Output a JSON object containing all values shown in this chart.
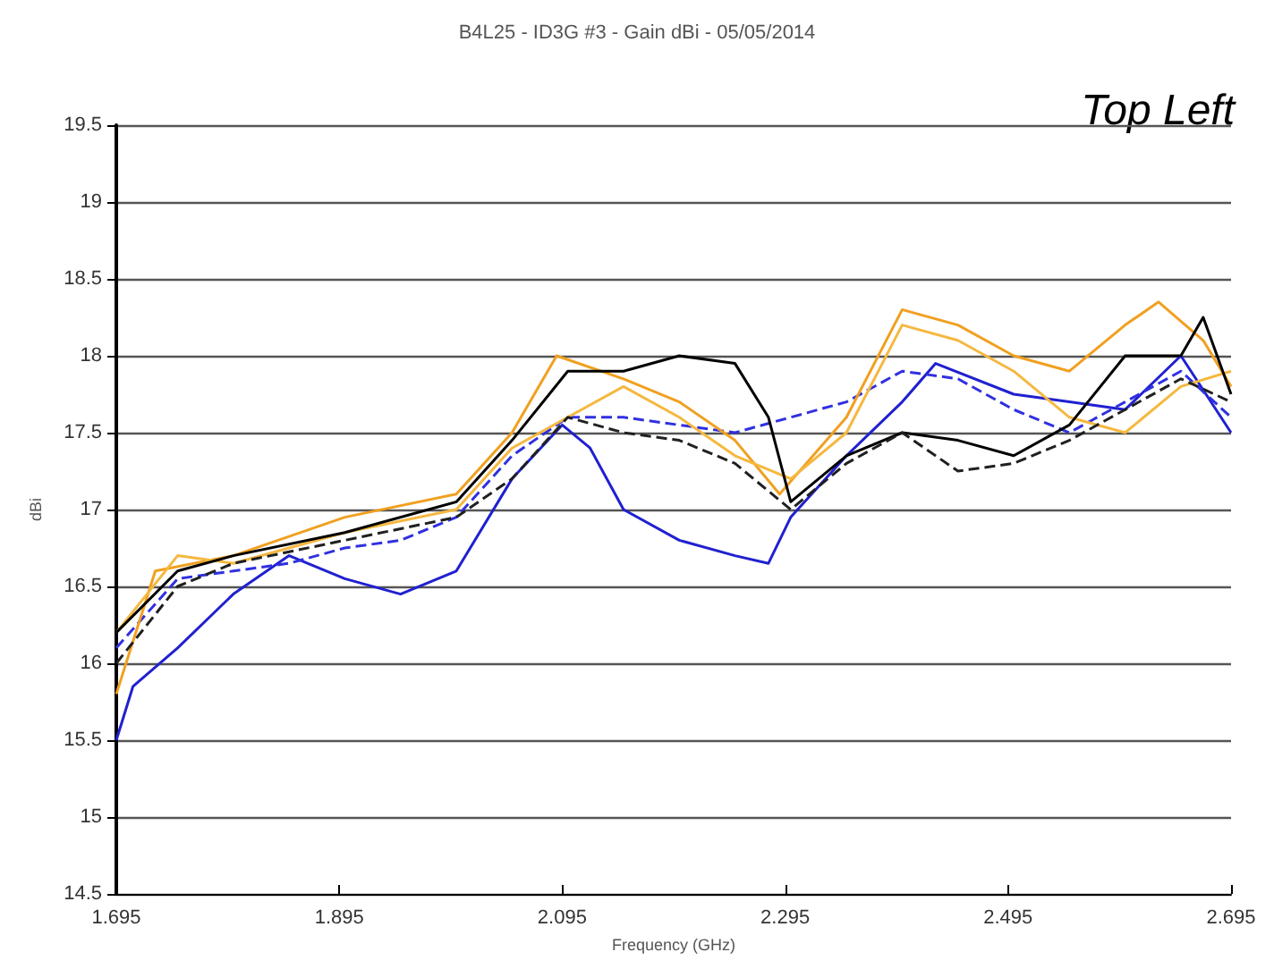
{
  "chart_data": {
    "type": "line",
    "title": "B4L25 - ID3G #3 - Gain dBi - 05/05/2014",
    "xlabel": "Frequency (GHz)",
    "ylabel": "dBi",
    "annotations": [
      "Top Left"
    ],
    "xlim": [
      1.695,
      2.695
    ],
    "xticks": [
      1.695,
      1.895,
      2.095,
      2.295,
      2.495,
      2.695
    ],
    "ylim": [
      14.5,
      19.5
    ],
    "yticks": [
      14.5,
      15,
      15.5,
      16,
      16.5,
      17,
      17.5,
      18,
      18.5,
      19,
      19.5
    ],
    "grid": "y",
    "marker": "none",
    "series": [
      {
        "color": "#2020d0",
        "line_style": "solid",
        "x": [
          1.695,
          1.71,
          1.75,
          1.8,
          1.85,
          1.9,
          1.95,
          2.0,
          2.05,
          2.095,
          2.12,
          2.15,
          2.2,
          2.25,
          2.28,
          2.3,
          2.35,
          2.4,
          2.43,
          2.5,
          2.55,
          2.6,
          2.65,
          2.695
        ],
        "values": [
          15.5,
          15.85,
          16.1,
          16.45,
          16.7,
          16.55,
          16.45,
          16.6,
          17.2,
          17.55,
          17.4,
          17.0,
          16.8,
          16.7,
          16.65,
          16.95,
          17.35,
          17.7,
          17.95,
          17.75,
          17.7,
          17.65,
          18.0,
          17.5
        ]
      },
      {
        "color": "#3030e0",
        "line_style": "dashed",
        "x": [
          1.695,
          1.75,
          1.8,
          1.85,
          1.9,
          1.95,
          2.0,
          2.05,
          2.1,
          2.15,
          2.2,
          2.25,
          2.3,
          2.35,
          2.4,
          2.45,
          2.5,
          2.55,
          2.6,
          2.65,
          2.695
        ],
        "values": [
          16.1,
          16.55,
          16.6,
          16.65,
          16.75,
          16.8,
          16.95,
          17.35,
          17.6,
          17.6,
          17.55,
          17.5,
          17.6,
          17.7,
          17.9,
          17.85,
          17.65,
          17.5,
          17.7,
          17.9,
          17.6
        ]
      },
      {
        "color": "#f0a020",
        "line_style": "solid",
        "x": [
          1.695,
          1.73,
          1.8,
          1.9,
          2.0,
          2.05,
          2.09,
          2.15,
          2.2,
          2.25,
          2.29,
          2.35,
          2.4,
          2.45,
          2.5,
          2.55,
          2.6,
          2.63,
          2.67,
          2.695
        ],
        "values": [
          15.8,
          16.6,
          16.7,
          16.95,
          17.1,
          17.5,
          18.0,
          17.85,
          17.7,
          17.45,
          17.1,
          17.6,
          18.3,
          18.2,
          18.0,
          17.9,
          18.2,
          18.35,
          18.1,
          17.8
        ]
      },
      {
        "color": "#f5b840",
        "line_style": "solid",
        "x": [
          1.695,
          1.75,
          1.8,
          1.9,
          2.0,
          2.05,
          2.1,
          2.15,
          2.2,
          2.25,
          2.3,
          2.35,
          2.4,
          2.45,
          2.5,
          2.55,
          2.6,
          2.65,
          2.695
        ],
        "values": [
          16.2,
          16.7,
          16.65,
          16.85,
          17.0,
          17.4,
          17.6,
          17.8,
          17.6,
          17.35,
          17.2,
          17.5,
          18.2,
          18.1,
          17.9,
          17.6,
          17.5,
          17.8,
          17.9
        ]
      },
      {
        "color": "#000000",
        "line_style": "solid",
        "x": [
          1.695,
          1.75,
          1.8,
          1.9,
          2.0,
          2.05,
          2.1,
          2.15,
          2.2,
          2.25,
          2.28,
          2.3,
          2.35,
          2.4,
          2.45,
          2.5,
          2.55,
          2.6,
          2.65,
          2.67,
          2.695
        ],
        "values": [
          16.2,
          16.6,
          16.7,
          16.85,
          17.05,
          17.45,
          17.9,
          17.9,
          18.0,
          17.95,
          17.6,
          17.05,
          17.35,
          17.5,
          17.45,
          17.35,
          17.55,
          18.0,
          18.0,
          18.25,
          17.75
        ]
      },
      {
        "color": "#202020",
        "line_style": "dashed",
        "x": [
          1.695,
          1.75,
          1.8,
          1.9,
          2.0,
          2.05,
          2.1,
          2.15,
          2.2,
          2.25,
          2.3,
          2.35,
          2.4,
          2.45,
          2.5,
          2.55,
          2.6,
          2.65,
          2.695
        ],
        "values": [
          16.0,
          16.5,
          16.65,
          16.8,
          16.95,
          17.2,
          17.6,
          17.5,
          17.45,
          17.3,
          17.0,
          17.3,
          17.5,
          17.25,
          17.3,
          17.45,
          17.65,
          17.85,
          17.7
        ]
      }
    ]
  }
}
